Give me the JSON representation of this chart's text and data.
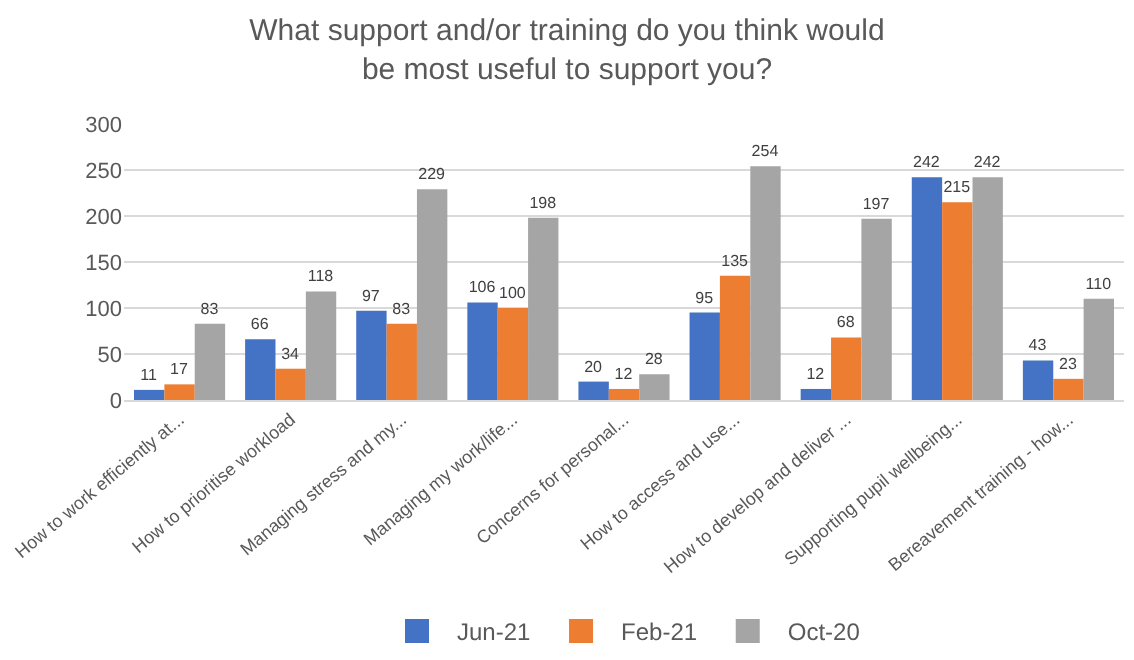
{
  "chart_data": {
    "type": "bar",
    "title": "What support and/or training do you think would be most useful to support you?",
    "categories": [
      "How to work efficiently at...",
      "How to prioritise workload",
      "Managing stress and my...",
      "Managing my work/life...",
      "Concerns for personal...",
      "How to access and use...",
      "How to develop and deliver ...",
      "Supporting pupil wellbeing...",
      "Bereavement training - how..."
    ],
    "series": [
      {
        "name": "Jun-21",
        "color": "#4472c4",
        "values": [
          11,
          66,
          97,
          106,
          20,
          95,
          12,
          242,
          43
        ]
      },
      {
        "name": "Feb-21",
        "color": "#ed7d31",
        "values": [
          17,
          34,
          83,
          100,
          12,
          135,
          68,
          215,
          23
        ]
      },
      {
        "name": "Oct-20",
        "color": "#a5a5a5",
        "values": [
          83,
          118,
          229,
          198,
          28,
          254,
          197,
          242,
          110
        ]
      }
    ],
    "ylim": [
      0,
      300
    ],
    "yticks": [
      0,
      50,
      100,
      150,
      200,
      250,
      300
    ],
    "grid": "y",
    "legend": "bottom",
    "data_labels": true
  }
}
